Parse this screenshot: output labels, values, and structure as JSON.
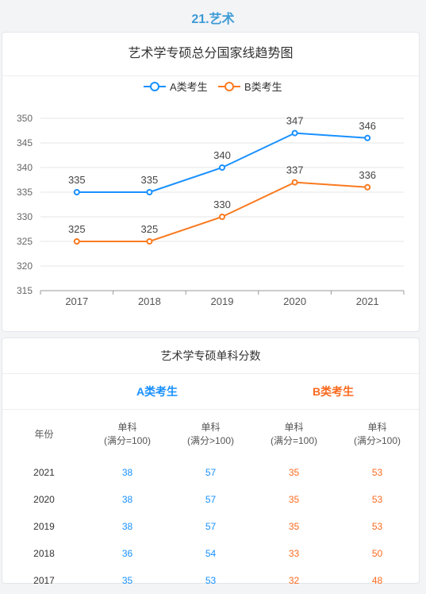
{
  "section": {
    "title": "21.艺术"
  },
  "chart_data": {
    "type": "line",
    "title": "艺术学专硕总分国家线趋势图",
    "x": [
      "2017",
      "2018",
      "2019",
      "2020",
      "2021"
    ],
    "series": [
      {
        "name": "A类考生",
        "color": "#1890ff",
        "values": [
          335,
          335,
          340,
          347,
          346
        ]
      },
      {
        "name": "B类考生",
        "color": "#fa7a20",
        "values": [
          325,
          325,
          330,
          337,
          336
        ]
      }
    ],
    "ylim": [
      315,
      350
    ],
    "yticks": [
      315,
      320,
      325,
      330,
      335,
      340,
      345,
      350
    ],
    "xlabel": "",
    "ylabel": "",
    "grid": true,
    "legend": "top-center",
    "data_labels": true
  },
  "table": {
    "title": "艺术学专硕单科分数",
    "group_a": "A类考生",
    "group_b": "B类考生",
    "colors": {
      "a": "#1890ff",
      "b": "#fa6a1e"
    },
    "headers": {
      "year": "年份",
      "c1_line1": "单科",
      "c1_line2": "(满分=100)",
      "c2_line1": "单科",
      "c2_line2": "(满分>100)",
      "c3_line1": "单科",
      "c3_line2": "(满分=100)",
      "c4_line1": "单科",
      "c4_line2": "(满分>100)"
    },
    "rows": [
      {
        "year": "2021",
        "a100": "38",
        "agt100": "57",
        "b100": "35",
        "bgt100": "53"
      },
      {
        "year": "2020",
        "a100": "38",
        "agt100": "57",
        "b100": "35",
        "bgt100": "53"
      },
      {
        "year": "2019",
        "a100": "38",
        "agt100": "57",
        "b100": "35",
        "bgt100": "53"
      },
      {
        "year": "2018",
        "a100": "36",
        "agt100": "54",
        "b100": "33",
        "bgt100": "50"
      },
      {
        "year": "2017",
        "a100": "35",
        "agt100": "53",
        "b100": "32",
        "bgt100": "48"
      }
    ]
  }
}
